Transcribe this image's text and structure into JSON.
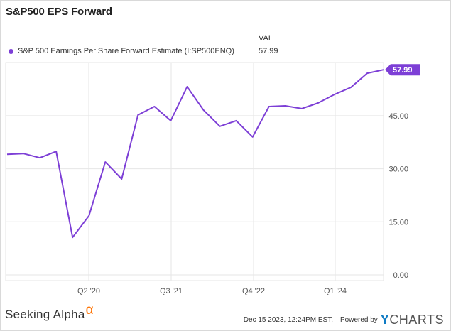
{
  "title": "S&P500 EPS Forward",
  "legend": {
    "column_header": "VAL",
    "series_label": "S&P 500 Earnings Per Share Forward Estimate (I:SP500ENQ)",
    "series_value": "57.99",
    "series_color": "#7d3fd6"
  },
  "last_value_badge": "57.99",
  "footer": {
    "brand": "Seeking Alpha",
    "brand_symbol": "α",
    "timestamp": "Dec 15 2023, 12:24PM EST.",
    "powered_by": "Powered by",
    "provider_y": "Y",
    "provider_rest": "CHARTS"
  },
  "colors": {
    "line": "#7d3fd6",
    "grid": "#e6e6e6",
    "badge_bg": "#7d3fd6",
    "badge_text": "#ffffff",
    "alpha_orange": "#ff7200",
    "ycharts_blue": "#0f7bc4"
  },
  "chart_data": {
    "type": "line",
    "title": "S&P500 EPS Forward",
    "xlabel": "",
    "ylabel": "",
    "x_tick_labels": [
      "Q2 '20",
      "Q3 '21",
      "Q4 '22",
      "Q1 '24"
    ],
    "y_tick_labels": [
      "0.00",
      "15.00",
      "30.00",
      "45.00"
    ],
    "ylim": [
      0,
      62
    ],
    "grid": true,
    "legend_position": "top-left",
    "series": [
      {
        "name": "S&P 500 Earnings Per Share Forward Estimate (I:SP500ENQ)",
        "last_value": 57.99,
        "values": [
          34.1,
          34.3,
          33.1,
          34.9,
          10.6,
          16.7,
          31.9,
          27.1,
          45.2,
          47.6,
          43.6,
          53.2,
          46.6,
          42.0,
          43.6,
          39.0,
          47.6,
          47.8,
          47.0,
          48.6,
          51.0,
          53.0,
          57.0,
          57.99
        ]
      }
    ]
  }
}
